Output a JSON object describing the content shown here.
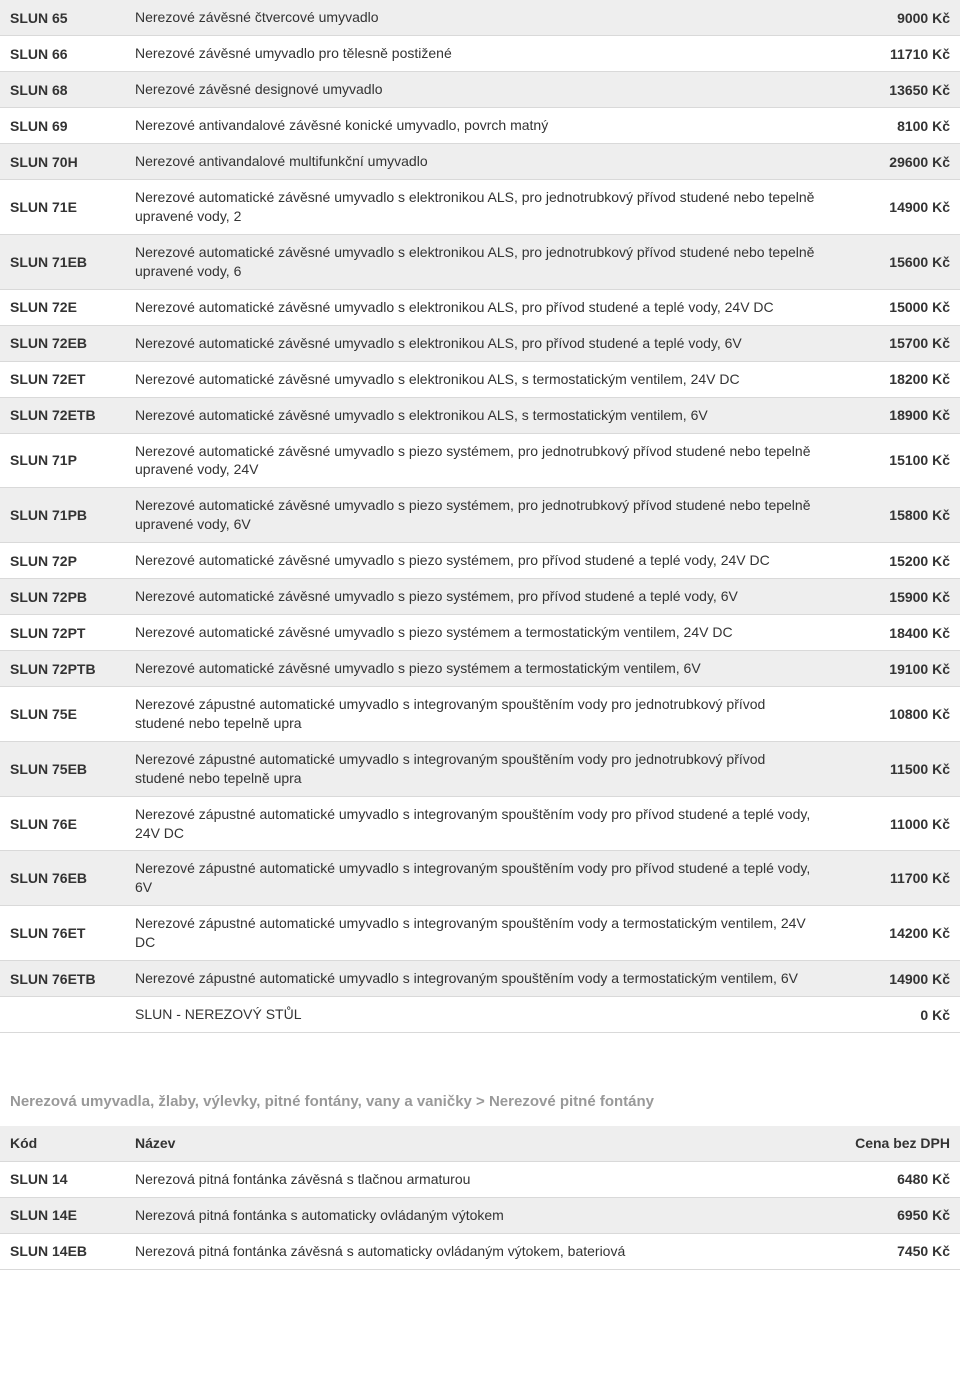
{
  "table1": {
    "rows": [
      {
        "code": "SLUN 65",
        "desc": "Nerezové závěsné čtvercové umyvadlo",
        "price": "9000 Kč",
        "alt": true
      },
      {
        "code": "SLUN 66",
        "desc": "Nerezové závěsné umyvadlo pro tělesně postižené",
        "price": "11710 Kč",
        "alt": false
      },
      {
        "code": "SLUN 68",
        "desc": "Nerezové závěsné designové umyvadlo",
        "price": "13650 Kč",
        "alt": true
      },
      {
        "code": "SLUN 69",
        "desc": "Nerezové antivandalové závěsné konické umyvadlo, povrch matný",
        "price": "8100 Kč",
        "alt": false
      },
      {
        "code": "SLUN 70H",
        "desc": "Nerezové antivandalové multifunkční umyvadlo",
        "price": "29600 Kč",
        "alt": true
      },
      {
        "code": "SLUN 71E",
        "desc": "Nerezové automatické závěsné umyvadlo s elektronikou ALS, pro jednotrubkový přívod studené nebo tepelně upravené vody, 2",
        "price": "14900 Kč",
        "alt": false
      },
      {
        "code": "SLUN 71EB",
        "desc": "Nerezové automatické závěsné umyvadlo s elektronikou ALS, pro jednotrubkový přívod studené nebo tepelně upravené vody, 6",
        "price": "15600 Kč",
        "alt": true
      },
      {
        "code": "SLUN 72E",
        "desc": "Nerezové automatické závěsné umyvadlo s elektronikou ALS, pro přívod studené a teplé vody, 24V DC",
        "price": "15000 Kč",
        "alt": false
      },
      {
        "code": "SLUN 72EB",
        "desc": "Nerezové automatické závěsné umyvadlo s elektronikou ALS, pro přívod studené a teplé vody, 6V",
        "price": "15700 Kč",
        "alt": true
      },
      {
        "code": "SLUN 72ET",
        "desc": "Nerezové automatické závěsné umyvadlo s elektronikou ALS, s termostatickým ventilem, 24V DC",
        "price": "18200 Kč",
        "alt": false
      },
      {
        "code": "SLUN 72ETB",
        "desc": "Nerezové automatické závěsné umyvadlo s elektronikou ALS, s termostatickým ventilem, 6V",
        "price": "18900 Kč",
        "alt": true
      },
      {
        "code": "SLUN 71P",
        "desc": "Nerezové automatické závěsné umyvadlo s piezo systémem, pro jednotrubkový přívod studené nebo tepelně upravené vody, 24V",
        "price": "15100 Kč",
        "alt": false
      },
      {
        "code": "SLUN 71PB",
        "desc": "Nerezové automatické závěsné umyvadlo s piezo systémem, pro jednotrubkový přívod studené nebo tepelně upravené vody, 6V",
        "price": "15800 Kč",
        "alt": true
      },
      {
        "code": "SLUN 72P",
        "desc": "Nerezové automatické závěsné umyvadlo s piezo systémem, pro přívod studené a teplé vody, 24V DC",
        "price": "15200 Kč",
        "alt": false
      },
      {
        "code": "SLUN 72PB",
        "desc": "Nerezové automatické závěsné umyvadlo s piezo systémem, pro přívod studené a teplé vody, 6V",
        "price": "15900 Kč",
        "alt": true
      },
      {
        "code": "SLUN 72PT",
        "desc": "Nerezové automatické závěsné umyvadlo s piezo systémem a termostatickým ventilem, 24V DC",
        "price": "18400 Kč",
        "alt": false
      },
      {
        "code": "SLUN 72PTB",
        "desc": "Nerezové automatické závěsné umyvadlo s piezo systémem a termostatickým ventilem, 6V",
        "price": "19100 Kč",
        "alt": true
      },
      {
        "code": "SLUN 75E",
        "desc": "Nerezové zápustné automatické umyvadlo s integrovaným spouštěním vody pro jednotrubkový přívod studené nebo tepelně upra",
        "price": "10800 Kč",
        "alt": false
      },
      {
        "code": "SLUN 75EB",
        "desc": "Nerezové zápustné automatické umyvadlo s integrovaným spouštěním vody pro jednotrubkový přívod studené nebo tepelně upra",
        "price": "11500 Kč",
        "alt": true
      },
      {
        "code": "SLUN 76E",
        "desc": "Nerezové zápustné automatické umyvadlo s integrovaným spouštěním vody pro přívod studené a teplé vody, 24V DC",
        "price": "11000 Kč",
        "alt": false
      },
      {
        "code": "SLUN 76EB",
        "desc": "Nerezové zápustné automatické umyvadlo s integrovaným spouštěním vody pro přívod studené a teplé vody, 6V",
        "price": "11700 Kč",
        "alt": true
      },
      {
        "code": "SLUN 76ET",
        "desc": "Nerezové zápustné automatické umyvadlo s integrovaným spouštěním vody a termostatickým ventilem, 24V DC",
        "price": "14200 Kč",
        "alt": false
      },
      {
        "code": "SLUN 76ETB",
        "desc": "Nerezové zápustné automatické umyvadlo s integrovaným spouštěním vody a termostatickým ventilem, 6V",
        "price": "14900 Kč",
        "alt": true
      },
      {
        "code": "",
        "desc": "SLUN - NEREZOVÝ STŮL",
        "price": "0 Kč",
        "alt": false
      }
    ]
  },
  "section2_heading": "Nerezová umyvadla, žlaby, výlevky, pitné fontány, vany a vaničky > Nerezové pitné fontány",
  "table2": {
    "header": {
      "code": "Kód",
      "desc": "Název",
      "price": "Cena bez DPH"
    },
    "rows": [
      {
        "code": "SLUN 14",
        "desc": "Nerezová pitná fontánka závěsná s tlačnou armaturou",
        "price": "6480 Kč",
        "alt": false
      },
      {
        "code": "SLUN 14E",
        "desc": "Nerezová pitná fontánka s automaticky ovládaným výtokem",
        "price": "6950 Kč",
        "alt": true
      },
      {
        "code": "SLUN 14EB",
        "desc": "Nerezová pitná fontánka závěsná s automaticky ovládaným výtokem, bateriová",
        "price": "7450 Kč",
        "alt": false
      }
    ]
  }
}
